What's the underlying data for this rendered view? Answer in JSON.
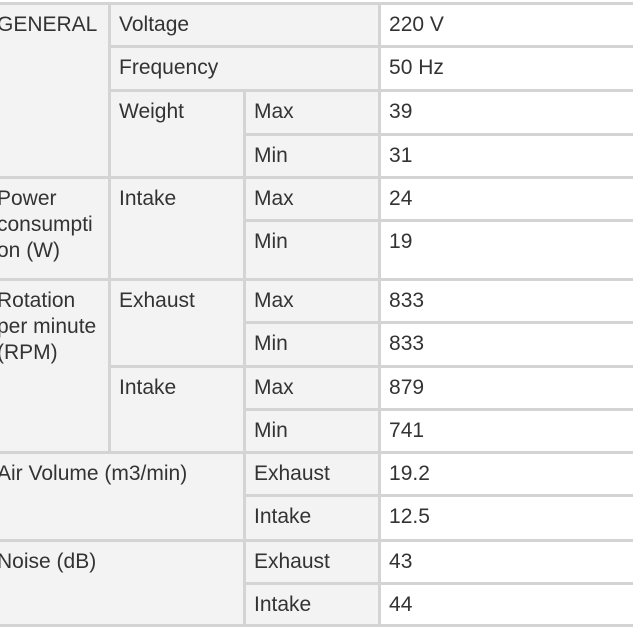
{
  "general": {
    "label": "GENERAL",
    "voltage": {
      "label": "Voltage",
      "value": "220 V"
    },
    "frequency": {
      "label": "Frequency",
      "value": "50 Hz"
    },
    "weight": {
      "label": "Weight",
      "max_label": "Max",
      "max": "39",
      "min_label": "Min",
      "min": "31"
    }
  },
  "power": {
    "label": "Power consumption (W)",
    "intake": {
      "label": "Intake",
      "max_label": "Max",
      "max": "24",
      "min_label": "Min",
      "min": "19"
    }
  },
  "rotation": {
    "label": "Rotation per minute (RPM)",
    "exhaust": {
      "label": "Exhaust",
      "max_label": "Max",
      "max": "833",
      "min_label": "Min",
      "min": "833"
    },
    "intake": {
      "label": "Intake",
      "max_label": "Max",
      "max": "879",
      "min_label": "Min",
      "min": "741"
    }
  },
  "air_volume": {
    "label": "Air Volume (m3/min)",
    "exhaust_label": "Exhaust",
    "exhaust": "19.2",
    "intake_label": "Intake",
    "intake": "12.5"
  },
  "noise": {
    "label": "Noise (dB)",
    "exhaust_label": "Exhaust",
    "exhaust": "43",
    "intake_label": "Intake",
    "intake": "44"
  }
}
